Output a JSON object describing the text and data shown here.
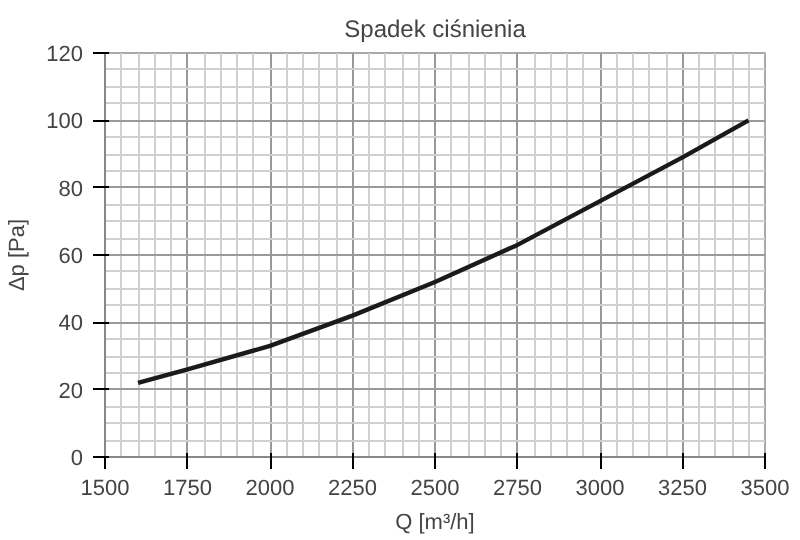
{
  "chart_data": {
    "type": "line",
    "title": "Spadek ciśnienia",
    "xlabel": "Q [m³/h]",
    "ylabel": "Δp [Pa]",
    "x": [
      1600,
      1750,
      2000,
      2250,
      2500,
      2750,
      3000,
      3250,
      3450
    ],
    "series": [
      {
        "color": "#1a1a1a",
        "values": [
          22,
          26,
          33,
          42,
          52,
          63,
          76,
          89,
          100
        ]
      }
    ],
    "xlim": [
      1500,
      3500
    ],
    "ylim": [
      0,
      120
    ],
    "xticks": [
      1500,
      1750,
      2000,
      2250,
      2500,
      2750,
      3000,
      3250,
      3500
    ],
    "yticks": [
      0,
      20,
      40,
      60,
      80,
      100,
      120
    ],
    "grid": true,
    "line_style": "solid",
    "marker": "none"
  }
}
